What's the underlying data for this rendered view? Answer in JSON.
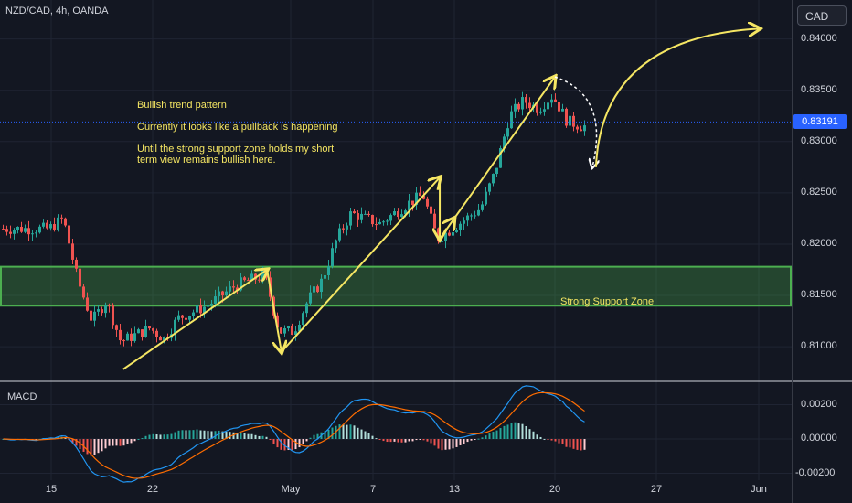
{
  "header": {
    "symbol": "NZD/CAD, 4h, OANDA",
    "currency": "CAD"
  },
  "annotations": {
    "pattern": "Bullish trend pattern",
    "pullback": "Currently it looks like a pullback is happening",
    "view_line1": "Until the strong support zone holds my short",
    "view_line2": "term view remains bullish here.",
    "zone": "Strong Support Zone"
  },
  "current_price": "0.83191",
  "indicator": {
    "name": "MACD"
  },
  "colors": {
    "up": "#26a69a",
    "down": "#ef5350",
    "annotation": "#f5e663",
    "zone": "#4caf50",
    "macd": "#2196f3",
    "signal": "#ff6d00",
    "bg": "#131722"
  },
  "chart_data": [
    {
      "type": "candlestick",
      "x_ticks": [
        "15",
        "22",
        "May",
        "7",
        "13",
        "20",
        "27",
        "Jun"
      ],
      "y_ticks": [
        "0.84000",
        "0.83500",
        "0.83000",
        "0.82500",
        "0.82000",
        "0.81500",
        "0.81000"
      ],
      "ylim": [
        0.8068,
        0.8438
      ],
      "support_zone": [
        0.814,
        0.8178
      ],
      "path_points": [
        {
          "d": "15",
          "p": 0.8215
        },
        {
          "d": "16",
          "p": 0.8225
        },
        {
          "d": "17",
          "p": 0.8165
        },
        {
          "d": "18",
          "p": 0.8125
        },
        {
          "d": "19",
          "p": 0.8145
        },
        {
          "d": "20",
          "p": 0.8105
        },
        {
          "d": "22",
          "p": 0.8118
        },
        {
          "d": "23",
          "p": 0.8108
        },
        {
          "d": "24",
          "p": 0.8128
        },
        {
          "d": "26",
          "p": 0.814
        },
        {
          "d": "27",
          "p": 0.815
        },
        {
          "d": "28",
          "p": 0.816
        },
        {
          "d": "29",
          "p": 0.8165
        },
        {
          "d": "30",
          "p": 0.817
        },
        {
          "d": "May 1",
          "p": 0.8115
        },
        {
          "d": "May 2",
          "p": 0.8115
        },
        {
          "d": "May 3",
          "p": 0.8145
        },
        {
          "d": "May 4",
          "p": 0.8165
        },
        {
          "d": "May 5",
          "p": 0.8205
        },
        {
          "d": "May 6",
          "p": 0.823
        },
        {
          "d": "May 7",
          "p": 0.8225
        },
        {
          "d": "May 8",
          "p": 0.822
        },
        {
          "d": "May 9",
          "p": 0.823
        },
        {
          "d": "May 10",
          "p": 0.824
        },
        {
          "d": "May 11",
          "p": 0.8248
        },
        {
          "d": "May 12",
          "p": 0.8205
        },
        {
          "d": "May 13",
          "p": 0.8215
        },
        {
          "d": "May 14",
          "p": 0.8225
        },
        {
          "d": "May 15",
          "p": 0.8235
        },
        {
          "d": "May 16",
          "p": 0.827
        },
        {
          "d": "May 17",
          "p": 0.8325
        },
        {
          "d": "May 18",
          "p": 0.834
        },
        {
          "d": "May 19",
          "p": 0.8332
        },
        {
          "d": "May 20",
          "p": 0.8345
        },
        {
          "d": "May 21",
          "p": 0.832
        },
        {
          "d": "May 22",
          "p": 0.8315
        }
      ],
      "arrows": [
        {
          "from": [
            "20",
            0.8078
          ],
          "to": [
            "30",
            0.8175
          ]
        },
        {
          "from": [
            "30",
            0.8175
          ],
          "to": [
            "May 1",
            0.8095
          ]
        },
        {
          "from": [
            "May 1",
            0.8095
          ],
          "to": [
            "May 12",
            0.8265
          ]
        },
        {
          "from": [
            "May 12",
            0.8265
          ],
          "to": [
            "May 12",
            0.8205
          ]
        },
        {
          "from": [
            "May 12",
            0.8205
          ],
          "to": [
            "May 13",
            0.8225
          ]
        },
        {
          "from": [
            "May 13",
            0.8225
          ],
          "to": [
            "May 20",
            0.8363
          ]
        }
      ],
      "forecast": {
        "pullback_to": 0.8275,
        "target": 0.841
      }
    },
    {
      "type": "macd",
      "y_ticks": [
        "0.00200",
        "0.00000",
        "-0.00200"
      ],
      "ylim": [
        -0.0024,
        0.0032
      ]
    }
  ]
}
